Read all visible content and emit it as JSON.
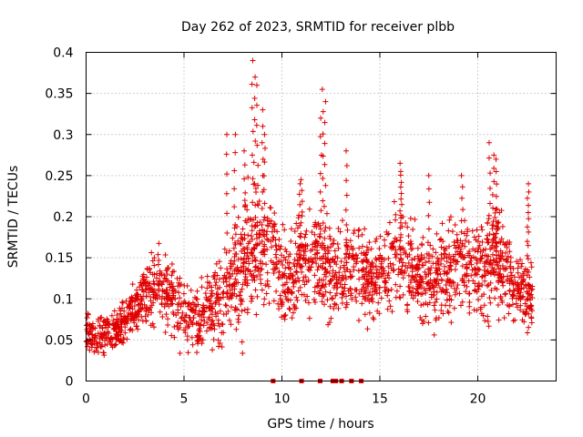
{
  "chart_data": {
    "type": "scatter",
    "title": "Day 262 of 2023, SRMTID for receiver plbb",
    "xlabel": "GPS time / hours",
    "ylabel": "SRMTID / TECUs",
    "xlim": [
      0,
      24
    ],
    "ylim": [
      0,
      0.4
    ],
    "grid": true,
    "marker_color": "#e00000",
    "x_ticks": [
      0,
      5,
      10,
      15,
      20
    ],
    "x_tick_labels": [
      "0",
      "5",
      "10",
      "15",
      "20"
    ],
    "y_ticks": [
      0,
      0.05,
      0.1,
      0.15,
      0.2,
      0.25,
      0.3,
      0.35,
      0.4
    ],
    "y_tick_labels": [
      "0",
      "0.05",
      "0.1",
      "0.15",
      "0.2",
      "0.25",
      "0.3",
      "0.35",
      "0.4"
    ],
    "zero_markers_x": [
      9.55,
      11.0,
      11.95,
      12.6,
      12.75,
      13.05,
      13.55,
      14.05
    ],
    "envelope": {
      "x": [
        0,
        0.5,
        1,
        1.5,
        2,
        2.5,
        3,
        3.5,
        4,
        4.5,
        5,
        5.5,
        6,
        6.5,
        7,
        7.5,
        8,
        8.5,
        9,
        9.5,
        10,
        10.5,
        11,
        11.5,
        12,
        12.5,
        13,
        13.5,
        14,
        14.5,
        15,
        15.5,
        16,
        16.5,
        17,
        17.5,
        18,
        18.5,
        19,
        19.5,
        20,
        20.5,
        21,
        21.5,
        22,
        22.5,
        22.8
      ],
      "center": [
        0.058,
        0.06,
        0.058,
        0.06,
        0.075,
        0.09,
        0.1,
        0.11,
        0.11,
        0.1,
        0.08,
        0.075,
        0.08,
        0.09,
        0.1,
        0.12,
        0.14,
        0.16,
        0.17,
        0.15,
        0.13,
        0.13,
        0.14,
        0.14,
        0.14,
        0.13,
        0.13,
        0.14,
        0.13,
        0.12,
        0.13,
        0.14,
        0.15,
        0.14,
        0.12,
        0.12,
        0.13,
        0.13,
        0.14,
        0.14,
        0.13,
        0.14,
        0.15,
        0.13,
        0.11,
        0.1,
        0.1
      ],
      "spread": [
        0.02,
        0.025,
        0.025,
        0.02,
        0.025,
        0.03,
        0.035,
        0.04,
        0.045,
        0.04,
        0.035,
        0.03,
        0.035,
        0.045,
        0.055,
        0.06,
        0.07,
        0.07,
        0.065,
        0.06,
        0.05,
        0.05,
        0.05,
        0.055,
        0.055,
        0.05,
        0.05,
        0.05,
        0.05,
        0.05,
        0.05,
        0.055,
        0.055,
        0.05,
        0.045,
        0.045,
        0.05,
        0.05,
        0.055,
        0.055,
        0.05,
        0.055,
        0.06,
        0.05,
        0.04,
        0.035,
        0.035
      ],
      "peaks": [
        [
          8.5,
          0.39
        ],
        [
          8.6,
          0.37
        ],
        [
          8.75,
          0.36
        ],
        [
          9.0,
          0.33
        ],
        [
          9.1,
          0.3
        ],
        [
          12.1,
          0.355
        ],
        [
          12.2,
          0.34
        ],
        [
          12.0,
          0.32
        ],
        [
          7.2,
          0.3
        ],
        [
          7.6,
          0.3
        ],
        [
          8.1,
          0.28
        ],
        [
          13.3,
          0.28
        ],
        [
          20.6,
          0.29
        ],
        [
          20.8,
          0.275
        ],
        [
          20.95,
          0.27
        ],
        [
          16.05,
          0.265
        ],
        [
          16.1,
          0.255
        ],
        [
          17.5,
          0.25
        ],
        [
          19.2,
          0.25
        ],
        [
          11.0,
          0.245
        ],
        [
          10.9,
          0.24
        ],
        [
          22.55,
          0.24
        ],
        [
          22.6,
          0.23
        ]
      ],
      "count": 2200
    }
  }
}
